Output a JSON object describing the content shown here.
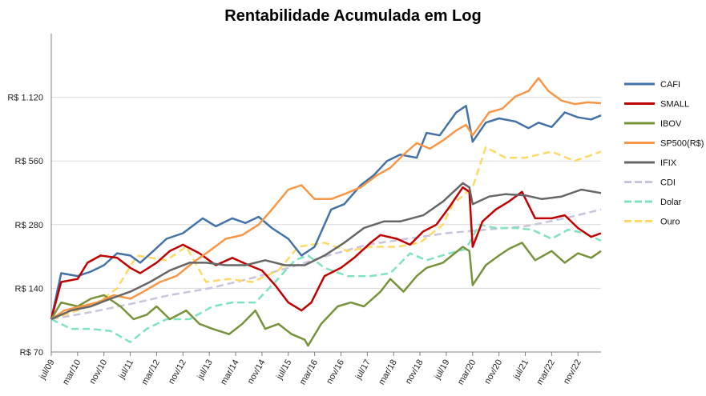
{
  "chart_data": {
    "type": "line",
    "title": "Rentabilidade Acumulada em Log",
    "y_scale": "log",
    "ylim": [
      70,
      2240
    ],
    "y_ticks": [
      {
        "value": 70,
        "label": "R$ 70"
      },
      {
        "value": 140,
        "label": "R$ 140"
      },
      {
        "value": 280,
        "label": "R$ 280"
      },
      {
        "value": 560,
        "label": "R$ 560"
      },
      {
        "value": 1120,
        "label": "R$ 1.120"
      }
    ],
    "x_range": [
      "2009-07",
      "2023-06"
    ],
    "x_ticks": [
      "jul/09",
      "mar/10",
      "nov/10",
      "jul/11",
      "mar/12",
      "nov/12",
      "jul/13",
      "mar/14",
      "nov/14",
      "jul/15",
      "mar/16",
      "nov/16",
      "jul/17",
      "mar/18",
      "nov/18",
      "jul/19",
      "mar/20",
      "nov/20",
      "jul/21",
      "mar/22",
      "nov/22"
    ],
    "grid": "horizontal",
    "legend_position": "right",
    "series": [
      {
        "name": "CAFI",
        "color": "#4472A8",
        "style": "solid",
        "points": [
          [
            "2009-07",
            100
          ],
          [
            "2009-10",
            165
          ],
          [
            "2010-03",
            160
          ],
          [
            "2010-07",
            168
          ],
          [
            "2010-11",
            180
          ],
          [
            "2011-03",
            205
          ],
          [
            "2011-07",
            200
          ],
          [
            "2011-10",
            185
          ],
          [
            "2012-02",
            210
          ],
          [
            "2012-06",
            240
          ],
          [
            "2012-11",
            255
          ],
          [
            "2013-05",
            300
          ],
          [
            "2013-09",
            275
          ],
          [
            "2014-02",
            300
          ],
          [
            "2014-06",
            285
          ],
          [
            "2014-10",
            305
          ],
          [
            "2015-02",
            270
          ],
          [
            "2015-07",
            240
          ],
          [
            "2015-11",
            200
          ],
          [
            "2016-03",
            220
          ],
          [
            "2016-08",
            330
          ],
          [
            "2016-12",
            350
          ],
          [
            "2017-05",
            430
          ],
          [
            "2017-09",
            480
          ],
          [
            "2018-01",
            560
          ],
          [
            "2018-05",
            600
          ],
          [
            "2018-10",
            580
          ],
          [
            "2019-01",
            760
          ],
          [
            "2019-05",
            740
          ],
          [
            "2019-10",
            950
          ],
          [
            "2020-01",
            1020
          ],
          [
            "2020-03",
            690
          ],
          [
            "2020-07",
            850
          ],
          [
            "2020-11",
            890
          ],
          [
            "2021-04",
            860
          ],
          [
            "2021-08",
            800
          ],
          [
            "2021-11",
            850
          ],
          [
            "2022-03",
            810
          ],
          [
            "2022-07",
            950
          ],
          [
            "2022-11",
            900
          ],
          [
            "2023-03",
            880
          ],
          [
            "2023-06",
            920
          ]
        ]
      },
      {
        "name": "SMALL",
        "color": "#C00000",
        "style": "solid",
        "points": [
          [
            "2009-07",
            100
          ],
          [
            "2009-10",
            150
          ],
          [
            "2010-03",
            155
          ],
          [
            "2010-06",
            185
          ],
          [
            "2010-10",
            200
          ],
          [
            "2011-03",
            195
          ],
          [
            "2011-07",
            175
          ],
          [
            "2011-10",
            165
          ],
          [
            "2012-03",
            185
          ],
          [
            "2012-07",
            210
          ],
          [
            "2012-11",
            225
          ],
          [
            "2013-04",
            205
          ],
          [
            "2013-09",
            180
          ],
          [
            "2014-02",
            195
          ],
          [
            "2014-07",
            180
          ],
          [
            "2014-11",
            170
          ],
          [
            "2015-03",
            145
          ],
          [
            "2015-07",
            120
          ],
          [
            "2015-11",
            110
          ],
          [
            "2016-02",
            120
          ],
          [
            "2016-06",
            160
          ],
          [
            "2016-11",
            175
          ],
          [
            "2017-03",
            195
          ],
          [
            "2017-08",
            230
          ],
          [
            "2017-11",
            250
          ],
          [
            "2018-04",
            240
          ],
          [
            "2018-08",
            225
          ],
          [
            "2018-12",
            260
          ],
          [
            "2019-04",
            280
          ],
          [
            "2019-08",
            340
          ],
          [
            "2019-12",
            420
          ],
          [
            "2020-02",
            400
          ],
          [
            "2020-03",
            220
          ],
          [
            "2020-06",
            290
          ],
          [
            "2020-10",
            330
          ],
          [
            "2021-02",
            360
          ],
          [
            "2021-06",
            400
          ],
          [
            "2021-10",
            300
          ],
          [
            "2022-03",
            300
          ],
          [
            "2022-07",
            310
          ],
          [
            "2022-11",
            270
          ],
          [
            "2023-03",
            245
          ],
          [
            "2023-06",
            255
          ]
        ]
      },
      {
        "name": "IBOV",
        "color": "#77933C",
        "style": "solid",
        "points": [
          [
            "2009-07",
            100
          ],
          [
            "2009-10",
            120
          ],
          [
            "2010-03",
            115
          ],
          [
            "2010-07",
            125
          ],
          [
            "2010-11",
            130
          ],
          [
            "2011-04",
            115
          ],
          [
            "2011-08",
            100
          ],
          [
            "2011-12",
            105
          ],
          [
            "2012-03",
            115
          ],
          [
            "2012-07",
            100
          ],
          [
            "2012-12",
            110
          ],
          [
            "2013-04",
            95
          ],
          [
            "2013-08",
            90
          ],
          [
            "2014-01",
            85
          ],
          [
            "2014-05",
            95
          ],
          [
            "2014-09",
            110
          ],
          [
            "2014-12",
            90
          ],
          [
            "2015-04",
            95
          ],
          [
            "2015-08",
            85
          ],
          [
            "2015-12",
            80
          ],
          [
            "2016-01",
            75
          ],
          [
            "2016-05",
            95
          ],
          [
            "2016-10",
            115
          ],
          [
            "2017-02",
            120
          ],
          [
            "2017-06",
            115
          ],
          [
            "2017-11",
            135
          ],
          [
            "2018-02",
            155
          ],
          [
            "2018-06",
            135
          ],
          [
            "2018-10",
            160
          ],
          [
            "2019-01",
            175
          ],
          [
            "2019-06",
            185
          ],
          [
            "2019-12",
            220
          ],
          [
            "2020-02",
            210
          ],
          [
            "2020-03",
            145
          ],
          [
            "2020-07",
            180
          ],
          [
            "2020-11",
            200
          ],
          [
            "2021-02",
            215
          ],
          [
            "2021-06",
            230
          ],
          [
            "2021-10",
            190
          ],
          [
            "2022-03",
            210
          ],
          [
            "2022-07",
            185
          ],
          [
            "2022-11",
            205
          ],
          [
            "2023-03",
            195
          ],
          [
            "2023-06",
            210
          ]
        ]
      },
      {
        "name": "SP500(R$)",
        "color": "#F79646",
        "style": "solid",
        "points": [
          [
            "2009-07",
            100
          ],
          [
            "2009-11",
            110
          ],
          [
            "2010-04",
            115
          ],
          [
            "2010-09",
            120
          ],
          [
            "2011-02",
            130
          ],
          [
            "2011-07",
            125
          ],
          [
            "2011-11",
            135
          ],
          [
            "2012-04",
            150
          ],
          [
            "2012-09",
            160
          ],
          [
            "2013-02",
            185
          ],
          [
            "2013-07",
            210
          ],
          [
            "2013-12",
            240
          ],
          [
            "2014-05",
            250
          ],
          [
            "2014-10",
            280
          ],
          [
            "2015-02",
            330
          ],
          [
            "2015-07",
            410
          ],
          [
            "2015-11",
            430
          ],
          [
            "2016-03",
            370
          ],
          [
            "2016-08",
            370
          ],
          [
            "2016-12",
            390
          ],
          [
            "2017-05",
            420
          ],
          [
            "2017-10",
            480
          ],
          [
            "2018-02",
            520
          ],
          [
            "2018-06",
            600
          ],
          [
            "2018-10",
            680
          ],
          [
            "2019-02",
            640
          ],
          [
            "2019-06",
            700
          ],
          [
            "2019-10",
            780
          ],
          [
            "2020-01",
            830
          ],
          [
            "2020-03",
            740
          ],
          [
            "2020-08",
            950
          ],
          [
            "2020-12",
            990
          ],
          [
            "2021-04",
            1130
          ],
          [
            "2021-08",
            1200
          ],
          [
            "2021-11",
            1380
          ],
          [
            "2022-02",
            1200
          ],
          [
            "2022-06",
            1080
          ],
          [
            "2022-10",
            1040
          ],
          [
            "2023-02",
            1060
          ],
          [
            "2023-06",
            1050
          ]
        ]
      },
      {
        "name": "IFIX",
        "color": "#666666",
        "style": "solid",
        "points": [
          [
            "2009-07",
            100
          ],
          [
            "2010-01",
            110
          ],
          [
            "2010-07",
            115
          ],
          [
            "2011-01",
            125
          ],
          [
            "2011-07",
            135
          ],
          [
            "2012-01",
            150
          ],
          [
            "2012-07",
            170
          ],
          [
            "2013-01",
            185
          ],
          [
            "2013-06",
            185
          ],
          [
            "2013-12",
            180
          ],
          [
            "2014-06",
            180
          ],
          [
            "2014-12",
            190
          ],
          [
            "2015-06",
            180
          ],
          [
            "2015-12",
            180
          ],
          [
            "2016-06",
            200
          ],
          [
            "2016-12",
            230
          ],
          [
            "2017-06",
            270
          ],
          [
            "2017-12",
            290
          ],
          [
            "2018-05",
            290
          ],
          [
            "2018-12",
            310
          ],
          [
            "2019-06",
            360
          ],
          [
            "2019-12",
            440
          ],
          [
            "2020-02",
            420
          ],
          [
            "2020-03",
            350
          ],
          [
            "2020-08",
            380
          ],
          [
            "2021-01",
            390
          ],
          [
            "2021-07",
            385
          ],
          [
            "2021-12",
            370
          ],
          [
            "2022-06",
            380
          ],
          [
            "2022-12",
            410
          ],
          [
            "2023-06",
            395
          ]
        ]
      },
      {
        "name": "CDI",
        "color": "#C9C3DC",
        "style": "dashed",
        "points": [
          [
            "2009-07",
            100
          ],
          [
            "2010-07",
            108
          ],
          [
            "2011-07",
            118
          ],
          [
            "2012-07",
            130
          ],
          [
            "2013-07",
            140
          ],
          [
            "2014-07",
            155
          ],
          [
            "2015-07",
            175
          ],
          [
            "2016-07",
            200
          ],
          [
            "2017-07",
            225
          ],
          [
            "2018-07",
            240
          ],
          [
            "2019-07",
            255
          ],
          [
            "2020-07",
            265
          ],
          [
            "2021-07",
            275
          ],
          [
            "2022-07",
            300
          ],
          [
            "2023-06",
            330
          ]
        ]
      },
      {
        "name": "Dolar",
        "color": "#7FE3BF",
        "style": "dashed",
        "points": [
          [
            "2009-07",
            100
          ],
          [
            "2010-01",
            90
          ],
          [
            "2010-07",
            90
          ],
          [
            "2011-01",
            88
          ],
          [
            "2011-07",
            78
          ],
          [
            "2011-12",
            90
          ],
          [
            "2012-06",
            100
          ],
          [
            "2013-01",
            100
          ],
          [
            "2013-08",
            115
          ],
          [
            "2014-02",
            120
          ],
          [
            "2014-09",
            120
          ],
          [
            "2015-03",
            150
          ],
          [
            "2015-09",
            190
          ],
          [
            "2016-01",
            200
          ],
          [
            "2016-06",
            175
          ],
          [
            "2017-01",
            160
          ],
          [
            "2017-08",
            160
          ],
          [
            "2018-02",
            165
          ],
          [
            "2018-08",
            205
          ],
          [
            "2019-01",
            190
          ],
          [
            "2019-08",
            205
          ],
          [
            "2020-01",
            215
          ],
          [
            "2020-05",
            280
          ],
          [
            "2020-10",
            270
          ],
          [
            "2021-04",
            270
          ],
          [
            "2021-09",
            265
          ],
          [
            "2022-03",
            240
          ],
          [
            "2022-08",
            265
          ],
          [
            "2023-01",
            255
          ],
          [
            "2023-06",
            235
          ]
        ]
      },
      {
        "name": "Ouro",
        "color": "#FFD966",
        "style": "dashed",
        "points": [
          [
            "2009-07",
            100
          ],
          [
            "2010-03",
            110
          ],
          [
            "2010-09",
            120
          ],
          [
            "2011-03",
            140
          ],
          [
            "2011-09",
            200
          ],
          [
            "2012-06",
            190
          ],
          [
            "2012-12",
            220
          ],
          [
            "2013-06",
            150
          ],
          [
            "2014-01",
            155
          ],
          [
            "2014-08",
            150
          ],
          [
            "2015-04",
            170
          ],
          [
            "2015-10",
            220
          ],
          [
            "2016-06",
            230
          ],
          [
            "2017-01",
            210
          ],
          [
            "2017-08",
            220
          ],
          [
            "2018-04",
            220
          ],
          [
            "2018-11",
            230
          ],
          [
            "2019-06",
            280
          ],
          [
            "2019-09",
            350
          ],
          [
            "2020-03",
            420
          ],
          [
            "2020-07",
            650
          ],
          [
            "2021-01",
            580
          ],
          [
            "2021-07",
            580
          ],
          [
            "2022-03",
            620
          ],
          [
            "2022-10",
            560
          ],
          [
            "2023-06",
            620
          ]
        ]
      }
    ]
  }
}
